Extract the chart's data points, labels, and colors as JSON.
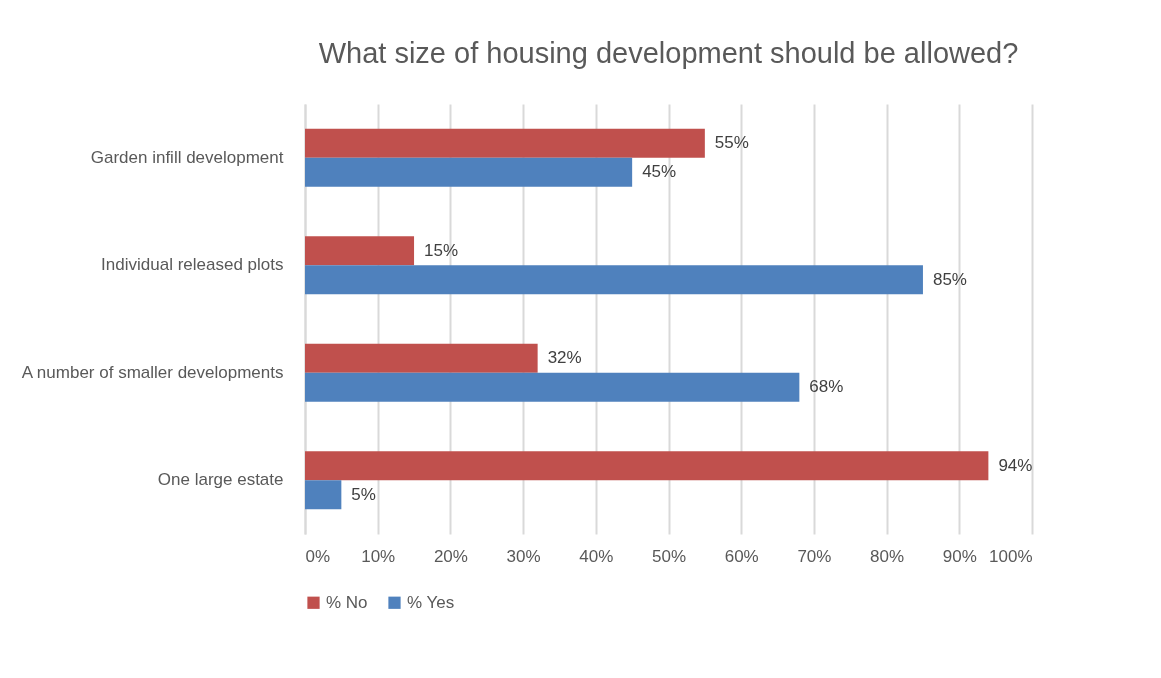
{
  "chart_data": {
    "type": "bar",
    "orientation": "horizontal",
    "title": "What size of housing development should be allowed?",
    "categories": [
      "Garden infill development",
      "Individual released plots",
      "A number of smaller developments",
      "One large estate"
    ],
    "series": [
      {
        "name": "% No",
        "color": "#c0504d",
        "values": [
          55,
          15,
          32,
          94
        ],
        "value_labels": [
          "55%",
          "15%",
          "32%",
          "94%"
        ]
      },
      {
        "name": "% Yes",
        "color": "#4f81bd",
        "values": [
          45,
          85,
          68,
          5
        ],
        "value_labels": [
          "45%",
          "85%",
          "68%",
          "5%"
        ]
      }
    ],
    "xlim": [
      0,
      100
    ],
    "xticks": [
      {
        "value": 0,
        "label": "0%"
      },
      {
        "value": 10,
        "label": "10%"
      },
      {
        "value": 20,
        "label": "20%"
      },
      {
        "value": 30,
        "label": "30%"
      },
      {
        "value": 40,
        "label": "40%"
      },
      {
        "value": 50,
        "label": "50%"
      },
      {
        "value": 60,
        "label": "60%"
      },
      {
        "value": 70,
        "label": "70%"
      },
      {
        "value": 80,
        "label": "80%"
      },
      {
        "value": 90,
        "label": "90%"
      },
      {
        "value": 100,
        "label": "100%"
      }
    ],
    "grid": "x",
    "legend": "bottom"
  }
}
